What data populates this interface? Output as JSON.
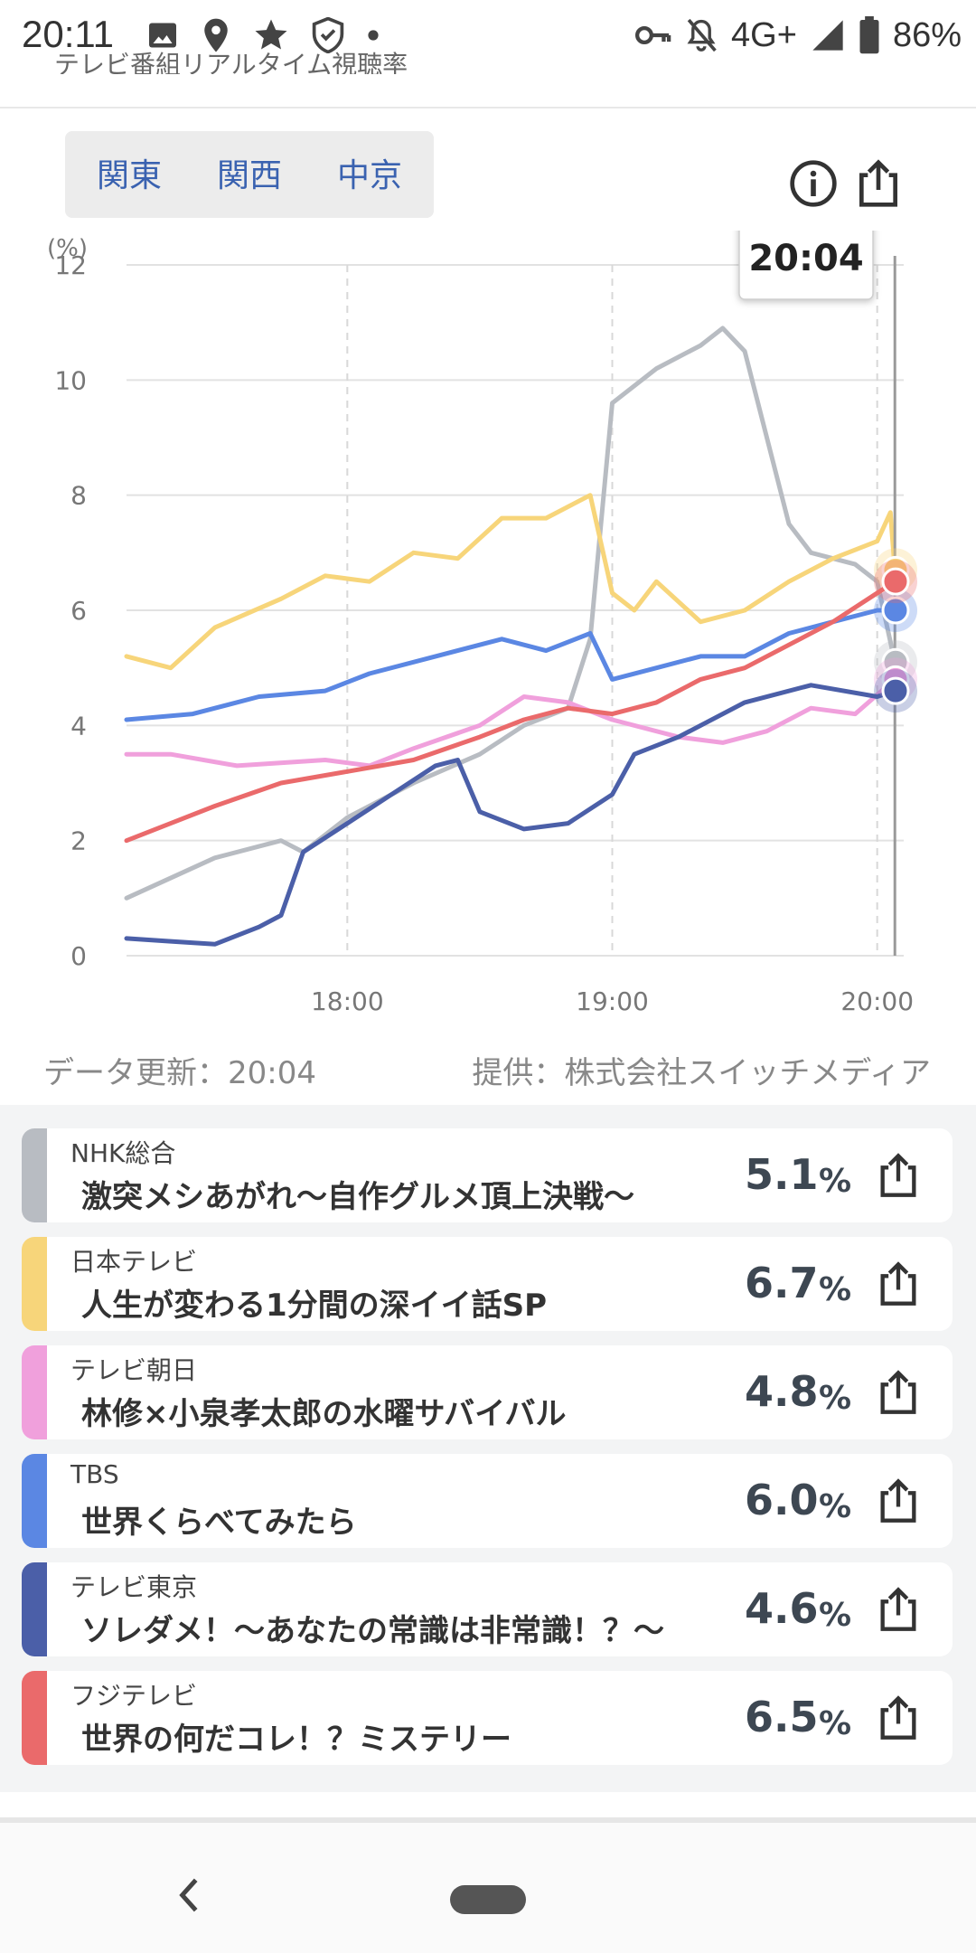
{
  "status_bar": {
    "time": "20:11",
    "left_icons": [
      "image-icon",
      "location-icon",
      "star-icon",
      "shield-icon",
      "dot-icon"
    ],
    "network": "4G+",
    "battery": "86%",
    "right_icons": [
      "key-icon",
      "bell-off-icon",
      "signal-icon",
      "battery-icon"
    ]
  },
  "page": {
    "cut_title": "テレビ番組リアルタイム視聴率"
  },
  "region_tabs": [
    {
      "label": "関東",
      "active": true
    },
    {
      "label": "関西",
      "active": false
    },
    {
      "label": "中京",
      "active": false
    }
  ],
  "toolbar": {
    "info_icon": "info-icon",
    "share_icon": "share-icon"
  },
  "chart_data": {
    "type": "line",
    "unit_label": "(%)",
    "ylim": [
      0,
      12
    ],
    "yticks": [
      "0",
      "2",
      "4",
      "6",
      "8",
      "10",
      "12"
    ],
    "x_tick_labels": [
      "18:00",
      "19:00",
      "20:00"
    ],
    "cursor_label": "20:04",
    "grid": true,
    "series": [
      {
        "name": "NHK総合",
        "color": "#b8bcc2",
        "x": [
          "17:10",
          "17:30",
          "17:45",
          "17:50",
          "18:00",
          "18:15",
          "18:30",
          "18:40",
          "18:50",
          "18:55",
          "19:00",
          "19:10",
          "19:20",
          "19:25",
          "19:30",
          "19:40",
          "19:45",
          "19:55",
          "20:00",
          "20:04"
        ],
        "y": [
          1.0,
          1.7,
          2.0,
          1.8,
          2.4,
          3.0,
          3.5,
          4.0,
          4.3,
          5.5,
          9.6,
          10.2,
          10.6,
          10.9,
          10.5,
          7.5,
          7.0,
          6.8,
          6.5,
          5.1
        ]
      },
      {
        "name": "日本テレビ",
        "color": "#f7d57a",
        "x": [
          "17:10",
          "17:20",
          "17:30",
          "17:45",
          "17:55",
          "18:05",
          "18:15",
          "18:25",
          "18:35",
          "18:45",
          "18:55",
          "19:00",
          "19:05",
          "19:10",
          "19:20",
          "19:30",
          "19:40",
          "19:50",
          "20:00",
          "20:03",
          "20:04"
        ],
        "y": [
          5.2,
          5.0,
          5.7,
          6.2,
          6.6,
          6.5,
          7.0,
          6.9,
          7.6,
          7.6,
          8.0,
          6.3,
          6.0,
          6.5,
          5.8,
          6.0,
          6.5,
          6.9,
          7.2,
          7.7,
          6.7
        ]
      },
      {
        "name": "テレビ朝日",
        "color": "#f0a0dc",
        "x": [
          "17:10",
          "17:20",
          "17:35",
          "17:55",
          "18:05",
          "18:15",
          "18:30",
          "18:40",
          "18:50",
          "19:00",
          "19:15",
          "19:25",
          "19:35",
          "19:45",
          "19:55",
          "20:04"
        ],
        "y": [
          3.5,
          3.5,
          3.3,
          3.4,
          3.3,
          3.6,
          4.0,
          4.5,
          4.4,
          4.1,
          3.8,
          3.7,
          3.9,
          4.3,
          4.2,
          4.8
        ]
      },
      {
        "name": "TBS",
        "color": "#5b87e3",
        "x": [
          "17:10",
          "17:25",
          "17:40",
          "17:55",
          "18:05",
          "18:20",
          "18:35",
          "18:45",
          "18:55",
          "19:00",
          "19:10",
          "19:20",
          "19:30",
          "19:40",
          "19:50",
          "20:00",
          "20:04"
        ],
        "y": [
          4.1,
          4.2,
          4.5,
          4.6,
          4.9,
          5.2,
          5.5,
          5.3,
          5.6,
          4.8,
          5.0,
          5.2,
          5.2,
          5.6,
          5.8,
          6.0,
          6.0
        ]
      },
      {
        "name": "テレビ東京",
        "color": "#4b5fa8",
        "x": [
          "17:10",
          "17:20",
          "17:30",
          "17:40",
          "17:45",
          "17:50",
          "18:00",
          "18:10",
          "18:20",
          "18:25",
          "18:30",
          "18:40",
          "18:50",
          "19:00",
          "19:05",
          "19:15",
          "19:30",
          "19:45",
          "20:00",
          "20:04"
        ],
        "y": [
          0.3,
          0.25,
          0.2,
          0.5,
          0.7,
          1.8,
          2.3,
          2.8,
          3.3,
          3.4,
          2.5,
          2.2,
          2.3,
          2.8,
          3.5,
          3.8,
          4.4,
          4.7,
          4.5,
          4.6
        ]
      },
      {
        "name": "フジテレビ",
        "color": "#ea6a6b",
        "x": [
          "17:10",
          "17:20",
          "17:30",
          "17:45",
          "18:00",
          "18:15",
          "18:30",
          "18:40",
          "18:50",
          "19:00",
          "19:10",
          "19:20",
          "19:30",
          "19:40",
          "19:50",
          "20:00",
          "20:04"
        ],
        "y": [
          2.0,
          2.3,
          2.6,
          3.0,
          3.2,
          3.4,
          3.8,
          4.1,
          4.3,
          4.2,
          4.4,
          4.8,
          5.0,
          5.4,
          5.8,
          6.3,
          6.5
        ]
      }
    ]
  },
  "meta": {
    "updated": "データ更新：20:04",
    "source": "提供：株式会社スイッチメディア"
  },
  "programs": [
    {
      "channel": "NHK総合",
      "title": "激突メシあがれ～自作グルメ頂上決戦～",
      "rating": "5.1",
      "unit": "%",
      "color": "#b8bcc2"
    },
    {
      "channel": "日本テレビ",
      "title": "人生が変わる1分間の深イイ話SP",
      "rating": "6.7",
      "unit": "%",
      "color": "#f7d57a"
    },
    {
      "channel": "テレビ朝日",
      "title": "林修×小泉孝太郎の水曜サバイバル",
      "rating": "4.8",
      "unit": "%",
      "color": "#f0a0dc"
    },
    {
      "channel": "TBS",
      "title": "世界くらべてみたら",
      "rating": "6.0",
      "unit": "%",
      "color": "#5b87e3"
    },
    {
      "channel": "テレビ東京",
      "title": "ソレダメ！～あなたの常識は非常識！？～",
      "rating": "4.6",
      "unit": "%",
      "color": "#4b5fa8"
    },
    {
      "channel": "フジテレビ",
      "title": "世界の何だコレ！？ミステリー",
      "rating": "6.5",
      "unit": "%",
      "color": "#ea6a6b"
    }
  ],
  "nav": {
    "back_icon": "back-icon",
    "home_icon": "home-pill-icon"
  }
}
